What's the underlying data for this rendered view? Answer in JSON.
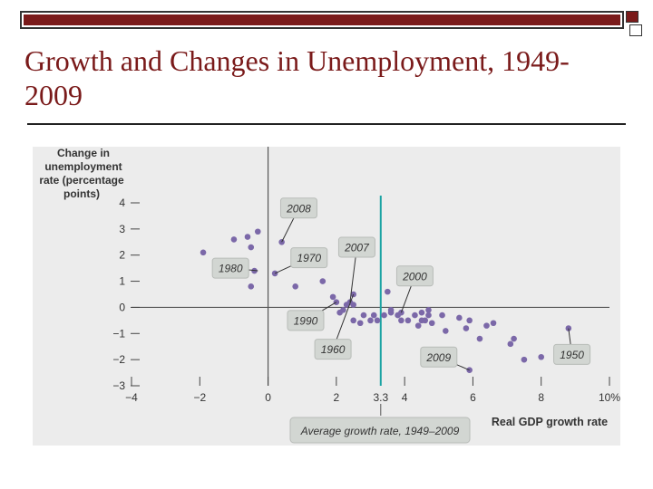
{
  "slide": {
    "title": "Growth and Changes in Unemployment, 1949-2009",
    "accent_color": "#7a1a1a",
    "background": "#ffffff"
  },
  "chart_data": {
    "type": "scatter",
    "ylabel": "Change in unemployment rate (percentage points)",
    "xlabel": "Real GDP growth rate",
    "xlim": [
      -4,
      10
    ],
    "ylim": [
      -3,
      4
    ],
    "x_ticks": [
      {
        "v": -4,
        "label": "−4"
      },
      {
        "v": -2,
        "label": "−2"
      },
      {
        "v": 0,
        "label": "0"
      },
      {
        "v": 2,
        "label": "2"
      },
      {
        "v": 3.3,
        "label": "3.3"
      },
      {
        "v": 4,
        "label": "4"
      },
      {
        "v": 6,
        "label": "6"
      },
      {
        "v": 8,
        "label": "8"
      },
      {
        "v": 10,
        "label": "10%"
      }
    ],
    "y_ticks": [
      {
        "v": 4,
        "label": "4"
      },
      {
        "v": 3,
        "label": "3"
      },
      {
        "v": 2,
        "label": "2"
      },
      {
        "v": 1,
        "label": "1"
      },
      {
        "v": 0,
        "label": "0"
      },
      {
        "v": -1,
        "label": "−1"
      },
      {
        "v": -2,
        "label": "−2"
      },
      {
        "v": -3,
        "label": "−3"
      }
    ],
    "average_growth": 3.3,
    "average_label": "Average growth rate, 1949–2009",
    "point_color": "#7b68a8",
    "average_line_color": "#1aa3a3",
    "points": [
      [
        -1.9,
        2.1
      ],
      [
        -1.0,
        2.6
      ],
      [
        -0.6,
        2.7
      ],
      [
        -0.5,
        2.3
      ],
      [
        -0.3,
        2.9
      ],
      [
        0.4,
        2.5
      ],
      [
        -0.4,
        1.4
      ],
      [
        -0.5,
        0.8
      ],
      [
        0.2,
        1.3
      ],
      [
        0.8,
        0.8
      ],
      [
        1.6,
        1.0
      ],
      [
        1.9,
        0.4
      ],
      [
        2.0,
        0.2
      ],
      [
        2.2,
        -0.1
      ],
      [
        2.3,
        0.1
      ],
      [
        2.1,
        -0.2
      ],
      [
        2.4,
        0.2
      ],
      [
        2.5,
        0.5
      ],
      [
        2.5,
        0.1
      ],
      [
        2.8,
        -0.3
      ],
      [
        2.5,
        -0.5
      ],
      [
        2.7,
        -0.6
      ],
      [
        3.0,
        -0.5
      ],
      [
        3.1,
        -0.3
      ],
      [
        3.2,
        -0.5
      ],
      [
        3.4,
        -0.3
      ],
      [
        3.6,
        -0.1
      ],
      [
        3.6,
        -0.2
      ],
      [
        3.5,
        0.6
      ],
      [
        3.8,
        -0.3
      ],
      [
        3.9,
        -0.2
      ],
      [
        3.9,
        -0.5
      ],
      [
        4.1,
        -0.5
      ],
      [
        4.3,
        -0.3
      ],
      [
        4.5,
        -0.2
      ],
      [
        4.5,
        -0.5
      ],
      [
        4.4,
        -0.7
      ],
      [
        4.7,
        -0.1
      ],
      [
        4.7,
        -0.3
      ],
      [
        4.6,
        -0.5
      ],
      [
        4.8,
        -0.6
      ],
      [
        5.1,
        -0.3
      ],
      [
        5.2,
        -0.9
      ],
      [
        5.6,
        -0.4
      ],
      [
        5.9,
        -0.5
      ],
      [
        5.8,
        -0.8
      ],
      [
        6.2,
        -1.2
      ],
      [
        6.4,
        -0.7
      ],
      [
        6.6,
        -0.6
      ],
      [
        7.2,
        -1.2
      ],
      [
        7.1,
        -1.4
      ],
      [
        7.5,
        -2.0
      ],
      [
        8.0,
        -1.9
      ],
      [
        8.8,
        -0.8
      ],
      [
        5.9,
        -2.4
      ]
    ],
    "callouts": [
      {
        "label": "2008",
        "bx": 0.9,
        "by": 3.8,
        "px": 0.4,
        "py": 2.5
      },
      {
        "label": "2007",
        "bx": 2.6,
        "by": 2.3,
        "px": 2.4,
        "py": 0.2
      },
      {
        "label": "1970",
        "bx": 1.2,
        "by": 1.9,
        "px": 0.2,
        "py": 1.3
      },
      {
        "label": "1980",
        "bx": -1.1,
        "by": 1.5,
        "px": -0.3,
        "py": 1.4
      },
      {
        "label": "2000",
        "bx": 4.3,
        "by": 1.2,
        "px": 3.9,
        "py": -0.2
      },
      {
        "label": "1990",
        "bx": 1.1,
        "by": -0.5,
        "px": 2.0,
        "py": 0.2
      },
      {
        "label": "1960",
        "bx": 1.9,
        "by": -1.6,
        "px": 2.5,
        "py": 0.5
      },
      {
        "label": "2009",
        "bx": 5.0,
        "by": -1.9,
        "px": 5.9,
        "py": -2.4
      },
      {
        "label": "1950",
        "bx": 8.9,
        "by": -1.8,
        "px": 8.8,
        "py": -0.8
      }
    ]
  }
}
